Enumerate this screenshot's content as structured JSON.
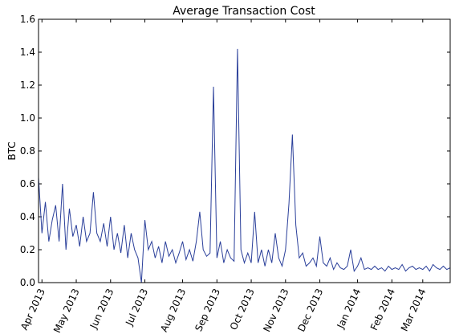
{
  "chart_data": {
    "type": "line",
    "title": "Average Transaction Cost",
    "y_label": "BTC",
    "categories": [
      null,
      "Apr 2013",
      null,
      null,
      null,
      null,
      null,
      null,
      null,
      null,
      null,
      "May 2013",
      null,
      null,
      null,
      null,
      null,
      null,
      null,
      null,
      null,
      "Jun 2013",
      null,
      null,
      null,
      null,
      null,
      null,
      null,
      null,
      null,
      "Jul 2013",
      null,
      null,
      null,
      null,
      null,
      null,
      null,
      null,
      null,
      null,
      "Aug 2013",
      null,
      null,
      null,
      null,
      null,
      null,
      null,
      null,
      null,
      "Sep 2013",
      null,
      null,
      null,
      null,
      null,
      null,
      null,
      null,
      null,
      "Oct 2013",
      null,
      null,
      null,
      null,
      null,
      null,
      null,
      null,
      null,
      "Nov 2013",
      null,
      null,
      null,
      null,
      null,
      null,
      null,
      null,
      null,
      "Dec 2013",
      null,
      null,
      null,
      null,
      null,
      null,
      null,
      null,
      null,
      null,
      "Jan 2014",
      null,
      null,
      null,
      null,
      null,
      null,
      null,
      null,
      null,
      "Feb 2014",
      null,
      null,
      null,
      null,
      null,
      null,
      null,
      null,
      "Mar 2014",
      null,
      null,
      null,
      null,
      null,
      null,
      null,
      null
    ],
    "series": [
      {
        "name": "BTC",
        "color": "#2a3f9a",
        "values": [
          0.64,
          0.3,
          0.49,
          0.25,
          0.38,
          0.47,
          0.25,
          0.6,
          0.2,
          0.45,
          0.28,
          0.35,
          0.22,
          0.4,
          0.25,
          0.3,
          0.55,
          0.3,
          0.25,
          0.36,
          0.22,
          0.4,
          0.2,
          0.3,
          0.18,
          0.35,
          0.15,
          0.3,
          0.2,
          0.15,
          0.0,
          0.38,
          0.2,
          0.25,
          0.15,
          0.22,
          0.12,
          0.25,
          0.16,
          0.2,
          0.12,
          0.18,
          0.25,
          0.14,
          0.2,
          0.13,
          0.25,
          0.43,
          0.2,
          0.16,
          0.18,
          1.19,
          0.15,
          0.25,
          0.12,
          0.2,
          0.15,
          0.13,
          1.42,
          0.2,
          0.12,
          0.18,
          0.12,
          0.43,
          0.12,
          0.2,
          0.1,
          0.2,
          0.12,
          0.3,
          0.15,
          0.1,
          0.2,
          0.48,
          0.9,
          0.35,
          0.15,
          0.18,
          0.1,
          0.12,
          0.15,
          0.1,
          0.28,
          0.12,
          0.1,
          0.15,
          0.08,
          0.12,
          0.09,
          0.08,
          0.1,
          0.2,
          0.07,
          0.1,
          0.15,
          0.08,
          0.09,
          0.08,
          0.1,
          0.08,
          0.09,
          0.07,
          0.1,
          0.08,
          0.09,
          0.08,
          0.11,
          0.07,
          0.09,
          0.1,
          0.08,
          0.09,
          0.08,
          0.1,
          0.07,
          0.11,
          0.09,
          0.08,
          0.1,
          0.08,
          0.09
        ]
      }
    ],
    "ylim": [
      0,
      1.6
    ],
    "yticks": [
      {
        "value": 0,
        "label": "0.0"
      },
      0.2,
      0.4,
      0.6,
      0.8,
      {
        "value": 1,
        "label": "1.0"
      },
      1.2,
      1.4,
      1.6
    ]
  }
}
